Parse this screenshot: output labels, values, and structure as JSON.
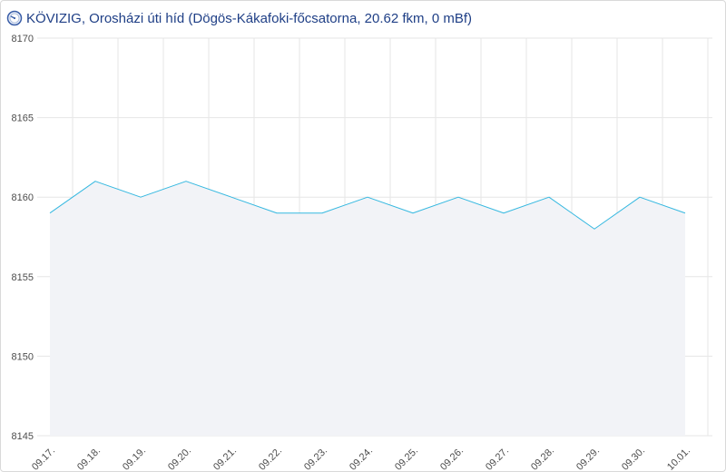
{
  "header": {
    "title": "KÖVIZIG, Orosházi úti híd (Dögös-Kákafoki-főcsatorna, 20.62 fkm, 0 mBf)",
    "icon": "gauge-icon"
  },
  "colors": {
    "line": "#35b8e0",
    "area": "#f2f3f7",
    "grid": "#e6e6e6",
    "title": "#1f3f86"
  },
  "chart_data": {
    "type": "area",
    "title": "KÖVIZIG, Orosházi úti híd (Dögös-Kákafoki-főcsatorna, 20.62 fkm, 0 mBf)",
    "xlabel": "",
    "ylabel": "",
    "ylim": [
      8145,
      8170
    ],
    "yticks": [
      8145,
      8150,
      8155,
      8160,
      8165,
      8170
    ],
    "xticks": [
      "09.17.",
      "09.18.",
      "09.19.",
      "09.20.",
      "09.21.",
      "09.22.",
      "09.23.",
      "09.24.",
      "09.25.",
      "09.26.",
      "09.27.",
      "09.28.",
      "09.29.",
      "09.30.",
      "10.01."
    ],
    "grid": true,
    "legend": "none",
    "x": [
      "09.17.",
      "09.18.",
      "09.19.",
      "09.20.",
      "09.21.",
      "09.22.",
      "09.23.",
      "09.24.",
      "09.25.",
      "09.26.",
      "09.27.",
      "09.28.",
      "09.29.",
      "09.30.",
      "10.01."
    ],
    "series": [
      {
        "values": [
          8159,
          8161,
          8160,
          8161,
          8160,
          8159,
          8159,
          8160,
          8159,
          8160,
          8159,
          8160,
          8158,
          8160,
          8159
        ]
      }
    ]
  }
}
